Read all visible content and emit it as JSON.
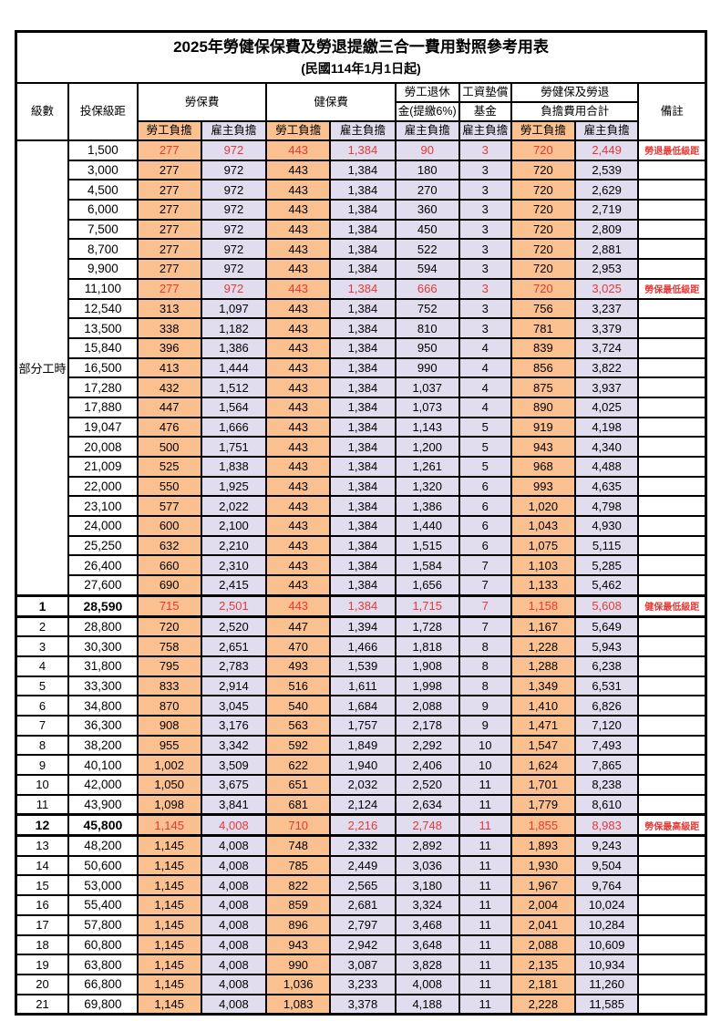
{
  "title": "2025年勞健保保費及勞退提繳三合一費用對照參考用表",
  "subtitle": "(民國114年1月1日起)",
  "colors": {
    "employee_bg": "#FAC090",
    "employer_bg": "#E1DCEE",
    "highlight_text": "#E53935",
    "border": "#000000"
  },
  "header": {
    "level": "級數",
    "bracket": "投保級距",
    "labor_fee": "勞保費",
    "health_fee": "健保費",
    "pension_line1": "勞工退休",
    "pension_line2": "金(提繳6%)",
    "wage_fund_line1": "工資墊償",
    "wage_fund_line2": "基金",
    "total_line1": "勞健保及勞退",
    "total_line2": "負擔費用合計",
    "remark": "備註",
    "employee": "勞工負擔",
    "employer": "雇主負擔"
  },
  "part_time_label": "部分工時",
  "value_col_pattern": [
    "emp",
    "er",
    "emp",
    "er",
    "er",
    "er",
    "emp",
    "er"
  ],
  "rows": [
    {
      "level": "",
      "section": "pt",
      "bracket": "1,500",
      "values": [
        "277",
        "972",
        "443",
        "1,384",
        "90",
        "3",
        "720",
        "2,449"
      ],
      "highlight": true,
      "bold": false,
      "remark": "勞退最低級距"
    },
    {
      "level": "",
      "section": "pt",
      "bracket": "3,000",
      "values": [
        "277",
        "972",
        "443",
        "1,384",
        "180",
        "3",
        "720",
        "2,539"
      ],
      "highlight": false,
      "bold": false,
      "remark": ""
    },
    {
      "level": "",
      "section": "pt",
      "bracket": "4,500",
      "values": [
        "277",
        "972",
        "443",
        "1,384",
        "270",
        "3",
        "720",
        "2,629"
      ],
      "highlight": false,
      "bold": false,
      "remark": ""
    },
    {
      "level": "",
      "section": "pt",
      "bracket": "6,000",
      "values": [
        "277",
        "972",
        "443",
        "1,384",
        "360",
        "3",
        "720",
        "2,719"
      ],
      "highlight": false,
      "bold": false,
      "remark": ""
    },
    {
      "level": "",
      "section": "pt",
      "bracket": "7,500",
      "values": [
        "277",
        "972",
        "443",
        "1,384",
        "450",
        "3",
        "720",
        "2,809"
      ],
      "highlight": false,
      "bold": false,
      "remark": ""
    },
    {
      "level": "",
      "section": "pt",
      "bracket": "8,700",
      "values": [
        "277",
        "972",
        "443",
        "1,384",
        "522",
        "3",
        "720",
        "2,881"
      ],
      "highlight": false,
      "bold": false,
      "remark": ""
    },
    {
      "level": "",
      "section": "pt",
      "bracket": "9,900",
      "values": [
        "277",
        "972",
        "443",
        "1,384",
        "594",
        "3",
        "720",
        "2,953"
      ],
      "highlight": false,
      "bold": false,
      "remark": ""
    },
    {
      "level": "",
      "section": "pt",
      "bracket": "11,100",
      "values": [
        "277",
        "972",
        "443",
        "1,384",
        "666",
        "3",
        "720",
        "3,025"
      ],
      "highlight": true,
      "bold": false,
      "remark": "勞保最低級距"
    },
    {
      "level": "",
      "section": "pt",
      "bracket": "12,540",
      "values": [
        "313",
        "1,097",
        "443",
        "1,384",
        "752",
        "3",
        "756",
        "3,237"
      ],
      "highlight": false,
      "bold": false,
      "remark": ""
    },
    {
      "level": "",
      "section": "pt",
      "bracket": "13,500",
      "values": [
        "338",
        "1,182",
        "443",
        "1,384",
        "810",
        "3",
        "781",
        "3,379"
      ],
      "highlight": false,
      "bold": false,
      "remark": ""
    },
    {
      "level": "",
      "section": "pt",
      "bracket": "15,840",
      "values": [
        "396",
        "1,386",
        "443",
        "1,384",
        "950",
        "4",
        "839",
        "3,724"
      ],
      "highlight": false,
      "bold": false,
      "remark": ""
    },
    {
      "level": "",
      "section": "pt",
      "bracket": "16,500",
      "values": [
        "413",
        "1,444",
        "443",
        "1,384",
        "990",
        "4",
        "856",
        "3,822"
      ],
      "highlight": false,
      "bold": false,
      "remark": ""
    },
    {
      "level": "",
      "section": "pt",
      "bracket": "17,280",
      "values": [
        "432",
        "1,512",
        "443",
        "1,384",
        "1,037",
        "4",
        "875",
        "3,937"
      ],
      "highlight": false,
      "bold": false,
      "remark": ""
    },
    {
      "level": "",
      "section": "pt",
      "bracket": "17,880",
      "values": [
        "447",
        "1,564",
        "443",
        "1,384",
        "1,073",
        "4",
        "890",
        "4,025"
      ],
      "highlight": false,
      "bold": false,
      "remark": ""
    },
    {
      "level": "",
      "section": "pt",
      "bracket": "19,047",
      "values": [
        "476",
        "1,666",
        "443",
        "1,384",
        "1,143",
        "5",
        "919",
        "4,198"
      ],
      "highlight": false,
      "bold": false,
      "remark": ""
    },
    {
      "level": "",
      "section": "pt",
      "bracket": "20,008",
      "values": [
        "500",
        "1,751",
        "443",
        "1,384",
        "1,200",
        "5",
        "943",
        "4,340"
      ],
      "highlight": false,
      "bold": false,
      "remark": ""
    },
    {
      "level": "",
      "section": "pt",
      "bracket": "21,009",
      "values": [
        "525",
        "1,838",
        "443",
        "1,384",
        "1,261",
        "5",
        "968",
        "4,488"
      ],
      "highlight": false,
      "bold": false,
      "remark": ""
    },
    {
      "level": "",
      "section": "pt",
      "bracket": "22,000",
      "values": [
        "550",
        "1,925",
        "443",
        "1,384",
        "1,320",
        "6",
        "993",
        "4,635"
      ],
      "highlight": false,
      "bold": false,
      "remark": ""
    },
    {
      "level": "",
      "section": "pt",
      "bracket": "23,100",
      "values": [
        "577",
        "2,022",
        "443",
        "1,384",
        "1,386",
        "6",
        "1,020",
        "4,798"
      ],
      "highlight": false,
      "bold": false,
      "remark": ""
    },
    {
      "level": "",
      "section": "pt",
      "bracket": "24,000",
      "values": [
        "600",
        "2,100",
        "443",
        "1,384",
        "1,440",
        "6",
        "1,043",
        "4,930"
      ],
      "highlight": false,
      "bold": false,
      "remark": ""
    },
    {
      "level": "",
      "section": "pt",
      "bracket": "25,250",
      "values": [
        "632",
        "2,210",
        "443",
        "1,384",
        "1,515",
        "6",
        "1,075",
        "5,115"
      ],
      "highlight": false,
      "bold": false,
      "remark": ""
    },
    {
      "level": "",
      "section": "pt",
      "bracket": "26,400",
      "values": [
        "660",
        "2,310",
        "443",
        "1,384",
        "1,584",
        "7",
        "1,103",
        "5,285"
      ],
      "highlight": false,
      "bold": false,
      "remark": ""
    },
    {
      "level": "",
      "section": "pt",
      "bracket": "27,600",
      "values": [
        "690",
        "2,415",
        "443",
        "1,384",
        "1,656",
        "7",
        "1,133",
        "5,462"
      ],
      "highlight": false,
      "bold": false,
      "remark": ""
    },
    {
      "level": "1",
      "section": "num",
      "bracket": "28,590",
      "values": [
        "715",
        "2,501",
        "443",
        "1,384",
        "1,715",
        "7",
        "1,158",
        "5,608"
      ],
      "highlight": true,
      "bold": true,
      "remark": "健保最低級距"
    },
    {
      "level": "2",
      "section": "num",
      "bracket": "28,800",
      "values": [
        "720",
        "2,520",
        "447",
        "1,394",
        "1,728",
        "7",
        "1,167",
        "5,649"
      ],
      "highlight": false,
      "bold": false,
      "remark": ""
    },
    {
      "level": "3",
      "section": "num",
      "bracket": "30,300",
      "values": [
        "758",
        "2,651",
        "470",
        "1,466",
        "1,818",
        "8",
        "1,228",
        "5,943"
      ],
      "highlight": false,
      "bold": false,
      "remark": ""
    },
    {
      "level": "4",
      "section": "num",
      "bracket": "31,800",
      "values": [
        "795",
        "2,783",
        "493",
        "1,539",
        "1,908",
        "8",
        "1,288",
        "6,238"
      ],
      "highlight": false,
      "bold": false,
      "remark": ""
    },
    {
      "level": "5",
      "section": "num",
      "bracket": "33,300",
      "values": [
        "833",
        "2,914",
        "516",
        "1,611",
        "1,998",
        "8",
        "1,349",
        "6,531"
      ],
      "highlight": false,
      "bold": false,
      "remark": ""
    },
    {
      "level": "6",
      "section": "num",
      "bracket": "34,800",
      "values": [
        "870",
        "3,045",
        "540",
        "1,684",
        "2,088",
        "9",
        "1,410",
        "6,826"
      ],
      "highlight": false,
      "bold": false,
      "remark": ""
    },
    {
      "level": "7",
      "section": "num",
      "bracket": "36,300",
      "values": [
        "908",
        "3,176",
        "563",
        "1,757",
        "2,178",
        "9",
        "1,471",
        "7,120"
      ],
      "highlight": false,
      "bold": false,
      "remark": ""
    },
    {
      "level": "8",
      "section": "num",
      "bracket": "38,200",
      "values": [
        "955",
        "3,342",
        "592",
        "1,849",
        "2,292",
        "10",
        "1,547",
        "7,493"
      ],
      "highlight": false,
      "bold": false,
      "remark": ""
    },
    {
      "level": "9",
      "section": "num",
      "bracket": "40,100",
      "values": [
        "1,002",
        "3,509",
        "622",
        "1,940",
        "2,406",
        "10",
        "1,624",
        "7,865"
      ],
      "highlight": false,
      "bold": false,
      "remark": ""
    },
    {
      "level": "10",
      "section": "num",
      "bracket": "42,000",
      "values": [
        "1,050",
        "3,675",
        "651",
        "2,032",
        "2,520",
        "11",
        "1,701",
        "8,238"
      ],
      "highlight": false,
      "bold": false,
      "remark": ""
    },
    {
      "level": "11",
      "section": "num",
      "bracket": "43,900",
      "values": [
        "1,098",
        "3,841",
        "681",
        "2,124",
        "2,634",
        "11",
        "1,779",
        "8,610"
      ],
      "highlight": false,
      "bold": false,
      "remark": ""
    },
    {
      "level": "12",
      "section": "num",
      "bracket": "45,800",
      "values": [
        "1,145",
        "4,008",
        "710",
        "2,216",
        "2,748",
        "11",
        "1,855",
        "8,983"
      ],
      "highlight": true,
      "bold": true,
      "remark": "勞保最高級距"
    },
    {
      "level": "13",
      "section": "num",
      "bracket": "48,200",
      "values": [
        "1,145",
        "4,008",
        "748",
        "2,332",
        "2,892",
        "11",
        "1,893",
        "9,243"
      ],
      "highlight": false,
      "bold": false,
      "remark": ""
    },
    {
      "level": "14",
      "section": "num",
      "bracket": "50,600",
      "values": [
        "1,145",
        "4,008",
        "785",
        "2,449",
        "3,036",
        "11",
        "1,930",
        "9,504"
      ],
      "highlight": false,
      "bold": false,
      "remark": ""
    },
    {
      "level": "15",
      "section": "num",
      "bracket": "53,000",
      "values": [
        "1,145",
        "4,008",
        "822",
        "2,565",
        "3,180",
        "11",
        "1,967",
        "9,764"
      ],
      "highlight": false,
      "bold": false,
      "remark": ""
    },
    {
      "level": "16",
      "section": "num",
      "bracket": "55,400",
      "values": [
        "1,145",
        "4,008",
        "859",
        "2,681",
        "3,324",
        "11",
        "2,004",
        "10,024"
      ],
      "highlight": false,
      "bold": false,
      "remark": ""
    },
    {
      "level": "17",
      "section": "num",
      "bracket": "57,800",
      "values": [
        "1,145",
        "4,008",
        "896",
        "2,797",
        "3,468",
        "11",
        "2,041",
        "10,284"
      ],
      "highlight": false,
      "bold": false,
      "remark": ""
    },
    {
      "level": "18",
      "section": "num",
      "bracket": "60,800",
      "values": [
        "1,145",
        "4,008",
        "943",
        "2,942",
        "3,648",
        "11",
        "2,088",
        "10,609"
      ],
      "highlight": false,
      "bold": false,
      "remark": ""
    },
    {
      "level": "19",
      "section": "num",
      "bracket": "63,800",
      "values": [
        "1,145",
        "4,008",
        "990",
        "3,087",
        "3,828",
        "11",
        "2,135",
        "10,934"
      ],
      "highlight": false,
      "bold": false,
      "remark": ""
    },
    {
      "level": "20",
      "section": "num",
      "bracket": "66,800",
      "values": [
        "1,145",
        "4,008",
        "1,036",
        "3,233",
        "4,008",
        "11",
        "2,181",
        "11,260"
      ],
      "highlight": false,
      "bold": false,
      "remark": ""
    },
    {
      "level": "21",
      "section": "num",
      "bracket": "69,800",
      "values": [
        "1,145",
        "4,008",
        "1,083",
        "3,378",
        "4,188",
        "11",
        "2,228",
        "11,585"
      ],
      "highlight": false,
      "bold": false,
      "remark": ""
    }
  ]
}
